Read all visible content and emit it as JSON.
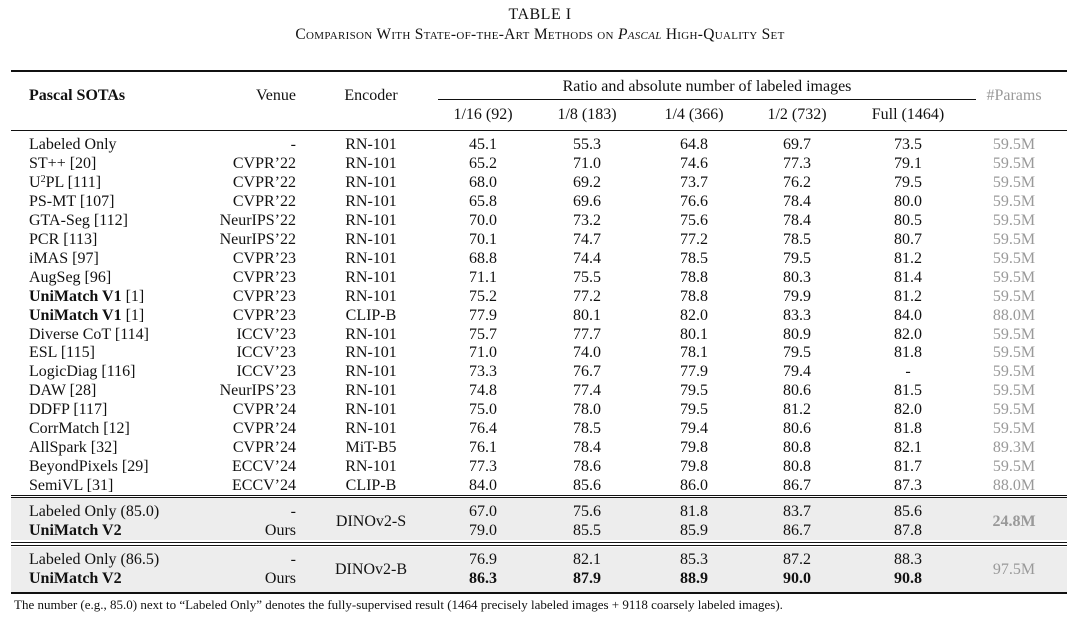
{
  "caption": {
    "label": "TABLE I",
    "title_part1": "Comparison With State-of-the-Art Methods on ",
    "title_italic": "Pascal",
    "title_part2": " High-Quality Set"
  },
  "header": {
    "method": "Pascal SOTAs",
    "venue": "Venue",
    "encoder": "Encoder",
    "group": "Ratio and absolute number of labeled images",
    "splits": [
      "1/16 (92)",
      "1/8 (183)",
      "1/4 (366)",
      "1/2 (732)",
      "Full (1464)"
    ],
    "params": "#Params"
  },
  "rows": [
    {
      "method": "Labeled Only",
      "venue": "-",
      "encoder": "RN-101",
      "values": [
        "45.1",
        "55.3",
        "64.8",
        "69.7",
        "73.5"
      ],
      "params": "59.5M"
    },
    {
      "method": "ST++ [20]",
      "venue": "CVPR’22",
      "encoder": "RN-101",
      "values": [
        "65.2",
        "71.0",
        "74.6",
        "77.3",
        "79.1"
      ],
      "params": "59.5M"
    },
    {
      "method": "U",
      "method_sup": "2",
      "method_rest": "PL [111]",
      "venue": "CVPR’22",
      "encoder": "RN-101",
      "values": [
        "68.0",
        "69.2",
        "73.7",
        "76.2",
        "79.5"
      ],
      "params": "59.5M"
    },
    {
      "method": "PS-MT [107]",
      "venue": "CVPR’22",
      "encoder": "RN-101",
      "values": [
        "65.8",
        "69.6",
        "76.6",
        "78.4",
        "80.0"
      ],
      "params": "59.5M"
    },
    {
      "method": "GTA-Seg [112]",
      "venue": "NeurIPS’22",
      "encoder": "RN-101",
      "values": [
        "70.0",
        "73.2",
        "75.6",
        "78.4",
        "80.5"
      ],
      "params": "59.5M"
    },
    {
      "method": "PCR [113]",
      "venue": "NeurIPS’22",
      "encoder": "RN-101",
      "values": [
        "70.1",
        "74.7",
        "77.2",
        "78.5",
        "80.7"
      ],
      "params": "59.5M"
    },
    {
      "method": "iMAS [97]",
      "venue": "CVPR’23",
      "encoder": "RN-101",
      "values": [
        "68.8",
        "74.4",
        "78.5",
        "79.5",
        "81.2"
      ],
      "params": "59.5M"
    },
    {
      "method": "AugSeg [96]",
      "venue": "CVPR’23",
      "encoder": "RN-101",
      "values": [
        "71.1",
        "75.5",
        "78.8",
        "80.3",
        "81.4"
      ],
      "params": "59.5M"
    },
    {
      "method": "UniMatch V1",
      "method_rest": " [1]",
      "bold": true,
      "venue": "CVPR’23",
      "encoder": "RN-101",
      "values": [
        "75.2",
        "77.2",
        "78.8",
        "79.9",
        "81.2"
      ],
      "params": "59.5M"
    },
    {
      "method": "UniMatch V1",
      "method_rest": " [1]",
      "bold": true,
      "venue": "CVPR’23",
      "encoder": "CLIP-B",
      "values": [
        "77.9",
        "80.1",
        "82.0",
        "83.3",
        "84.0"
      ],
      "params": "88.0M"
    },
    {
      "method": "Diverse CoT [114]",
      "venue": "ICCV’23",
      "encoder": "RN-101",
      "values": [
        "75.7",
        "77.7",
        "80.1",
        "80.9",
        "82.0"
      ],
      "params": "59.5M"
    },
    {
      "method": "ESL [115]",
      "venue": "ICCV’23",
      "encoder": "RN-101",
      "values": [
        "71.0",
        "74.0",
        "78.1",
        "79.5",
        "81.8"
      ],
      "params": "59.5M"
    },
    {
      "method": "LogicDiag [116]",
      "venue": "ICCV’23",
      "encoder": "RN-101",
      "values": [
        "73.3",
        "76.7",
        "77.9",
        "79.4",
        "-"
      ],
      "params": "59.5M"
    },
    {
      "method": "DAW [28]",
      "venue": "NeurIPS’23",
      "encoder": "RN-101",
      "values": [
        "74.8",
        "77.4",
        "79.5",
        "80.6",
        "81.5"
      ],
      "params": "59.5M"
    },
    {
      "method": "DDFP [117]",
      "venue": "CVPR’24",
      "encoder": "RN-101",
      "values": [
        "75.0",
        "78.0",
        "79.5",
        "81.2",
        "82.0"
      ],
      "params": "59.5M"
    },
    {
      "method": "CorrMatch [12]",
      "venue": "CVPR’24",
      "encoder": "RN-101",
      "values": [
        "76.4",
        "78.5",
        "79.4",
        "80.6",
        "81.8"
      ],
      "params": "59.5M"
    },
    {
      "method": "AllSpark [32]",
      "venue": "CVPR’24",
      "encoder": "MiT-B5",
      "values": [
        "76.1",
        "78.4",
        "79.8",
        "80.8",
        "82.1"
      ],
      "params": "89.3M"
    },
    {
      "method": "BeyondPixels [29]",
      "venue": "ECCV’24",
      "encoder": "RN-101",
      "values": [
        "77.3",
        "78.6",
        "79.8",
        "80.8",
        "81.7"
      ],
      "params": "59.5M"
    },
    {
      "method": "SemiVL [31]",
      "venue": "ECCV’24",
      "encoder": "CLIP-B",
      "values": [
        "84.0",
        "85.6",
        "86.0",
        "86.7",
        "87.3"
      ],
      "params": "88.0M"
    }
  ],
  "group1": {
    "encoder": "DINOv2-S",
    "params": "24.8M",
    "rows": [
      {
        "method": "Labeled Only (85.0)",
        "venue": "-",
        "values": [
          "67.0",
          "75.6",
          "81.8",
          "83.7",
          "85.6"
        ]
      },
      {
        "method": "UniMatch V2",
        "bold": true,
        "venue": "Ours",
        "values": [
          "79.0",
          "85.5",
          "85.9",
          "86.7",
          "87.8"
        ]
      }
    ]
  },
  "group2": {
    "encoder": "DINOv2-B",
    "params": "97.5M",
    "rows": [
      {
        "method": "Labeled Only (86.5)",
        "venue": "-",
        "values": [
          "76.9",
          "82.1",
          "85.3",
          "87.2",
          "88.3"
        ]
      },
      {
        "method": "UniMatch V2",
        "bold": true,
        "boldvals": true,
        "venue": "Ours",
        "values": [
          "86.3",
          "87.9",
          "88.9",
          "90.0",
          "90.8"
        ]
      }
    ]
  },
  "footnote": "The number (e.g., 85.0) next to “Labeled Only” denotes the fully-supervised result (1464 precisely labeled images + 9118 coarsely labeled images)."
}
